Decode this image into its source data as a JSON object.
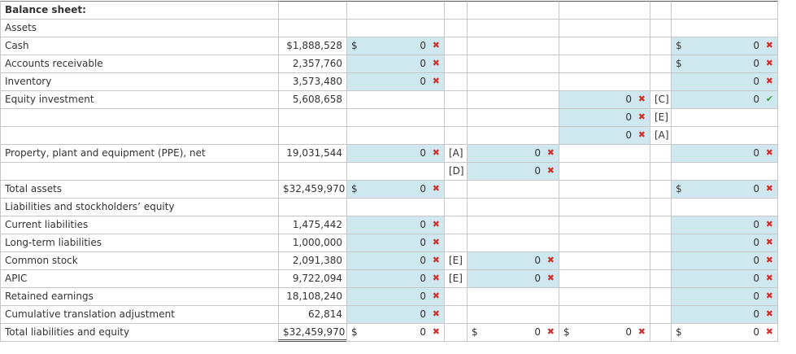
{
  "rows": [
    {
      "label": "Balance sheet:",
      "cells": [
        null,
        null,
        null,
        null,
        null,
        null,
        null
      ]
    },
    {
      "label": "Assets",
      "cells": [
        null,
        null,
        null,
        null,
        null,
        null,
        null
      ]
    },
    {
      "label": "Cash",
      "cells": [
        "$1,888,528",
        {
          "prefix": "$",
          "value": 0,
          "mark": "✖"
        },
        null,
        null,
        null,
        null,
        {
          "prefix": "$",
          "value": 0,
          "mark": "✖"
        }
      ]
    },
    {
      "label": "Accounts receivable",
      "cells": [
        "2,357,760",
        {
          "value": 0,
          "mark": "✖"
        },
        null,
        null,
        null,
        null,
        {
          "prefix": "$",
          "value": 0,
          "mark": "✖"
        }
      ]
    },
    {
      "label": "Inventory",
      "cells": [
        "3,573,480",
        {
          "value": 0,
          "mark": "✖"
        },
        null,
        null,
        null,
        null,
        {
          "value": 0,
          "mark": "✖"
        }
      ]
    },
    {
      "label": "Equity investment",
      "cells": [
        "5,608,658",
        null,
        null,
        null,
        {
          "value": 0,
          "mark": "✖"
        },
        "[C]",
        {
          "value": 0,
          "mark": "✔"
        }
      ]
    },
    {
      "label": null,
      "cells": [
        null,
        null,
        null,
        null,
        {
          "value": 0,
          "mark": "✖"
        },
        "[E]",
        null
      ]
    },
    {
      "label": null,
      "cells": [
        null,
        null,
        null,
        null,
        {
          "value": 0,
          "mark": "✖"
        },
        "[A]",
        null
      ]
    },
    {
      "label": "Property, plant and equipment (PPE), net",
      "cells": [
        "19,031,544",
        {
          "value": 0,
          "mark": "✖"
        },
        "[A]",
        {
          "value": 0,
          "mark": "✖"
        },
        null,
        null,
        {
          "value": 0,
          "mark": "✖"
        }
      ]
    },
    {
      "label": null,
      "cells": [
        null,
        null,
        "[D]",
        {
          "value": 0,
          "mark": "✖"
        },
        null,
        null,
        null
      ]
    },
    {
      "label": "Total assets",
      "cells": [
        "$32,459,970",
        {
          "prefix": "$",
          "value": 0,
          "mark": "✖"
        },
        null,
        null,
        null,
        null,
        {
          "prefix": "$",
          "value": 0,
          "mark": "✖"
        }
      ]
    },
    {
      "label": "Liabilities and stockholders’ equity",
      "cells": [
        null,
        null,
        null,
        null,
        null,
        null,
        null
      ]
    },
    {
      "label": "Current liabilities",
      "cells": [
        "1,475,442",
        {
          "value": 0,
          "mark": "✖"
        },
        null,
        null,
        null,
        null,
        {
          "value": 0,
          "mark": "✖"
        }
      ]
    },
    {
      "label": "Long-term liabilities",
      "cells": [
        "1,000,000",
        {
          "value": 0,
          "mark": "✖"
        },
        null,
        null,
        null,
        null,
        {
          "value": 0,
          "mark": "✖"
        }
      ]
    },
    {
      "label": "Common stock",
      "cells": [
        "2,091,380",
        {
          "value": 0,
          "mark": "✖"
        },
        "[E]",
        {
          "value": 0,
          "mark": "✖"
        },
        null,
        null,
        {
          "value": 0,
          "mark": "✖"
        }
      ]
    },
    {
      "label": "APIC",
      "cells": [
        "9,722,094",
        {
          "value": 0,
          "mark": "✖"
        },
        "[E]",
        {
          "value": 0,
          "mark": "✖"
        },
        null,
        null,
        {
          "value": 0,
          "mark": "✖"
        }
      ]
    },
    {
      "label": "Retained earnings",
      "cells": [
        "18,108,240",
        {
          "value": 0,
          "mark": "✖"
        },
        null,
        null,
        null,
        null,
        {
          "value": 0,
          "mark": "✖"
        }
      ]
    },
    {
      "label": "Cumulative translation adjustment",
      "cells": [
        "62,814",
        {
          "value": 0,
          "mark": "✖"
        },
        null,
        null,
        null,
        null,
        {
          "value": 0,
          "mark": "✖"
        }
      ]
    },
    {
      "label": "Total liabilities and equity",
      "cells": [
        "$32,459,970",
        {
          "prefix": "$",
          "value": 0,
          "mark": "✖"
        },
        null,
        {
          "prefix": "$",
          "value": 0,
          "mark": "✖"
        },
        {
          "prefix": "$",
          "value": 0,
          "mark": "✖"
        },
        null,
        {
          "prefix": "$",
          "value": 0,
          "mark": "✖"
        }
      ]
    }
  ]
}
